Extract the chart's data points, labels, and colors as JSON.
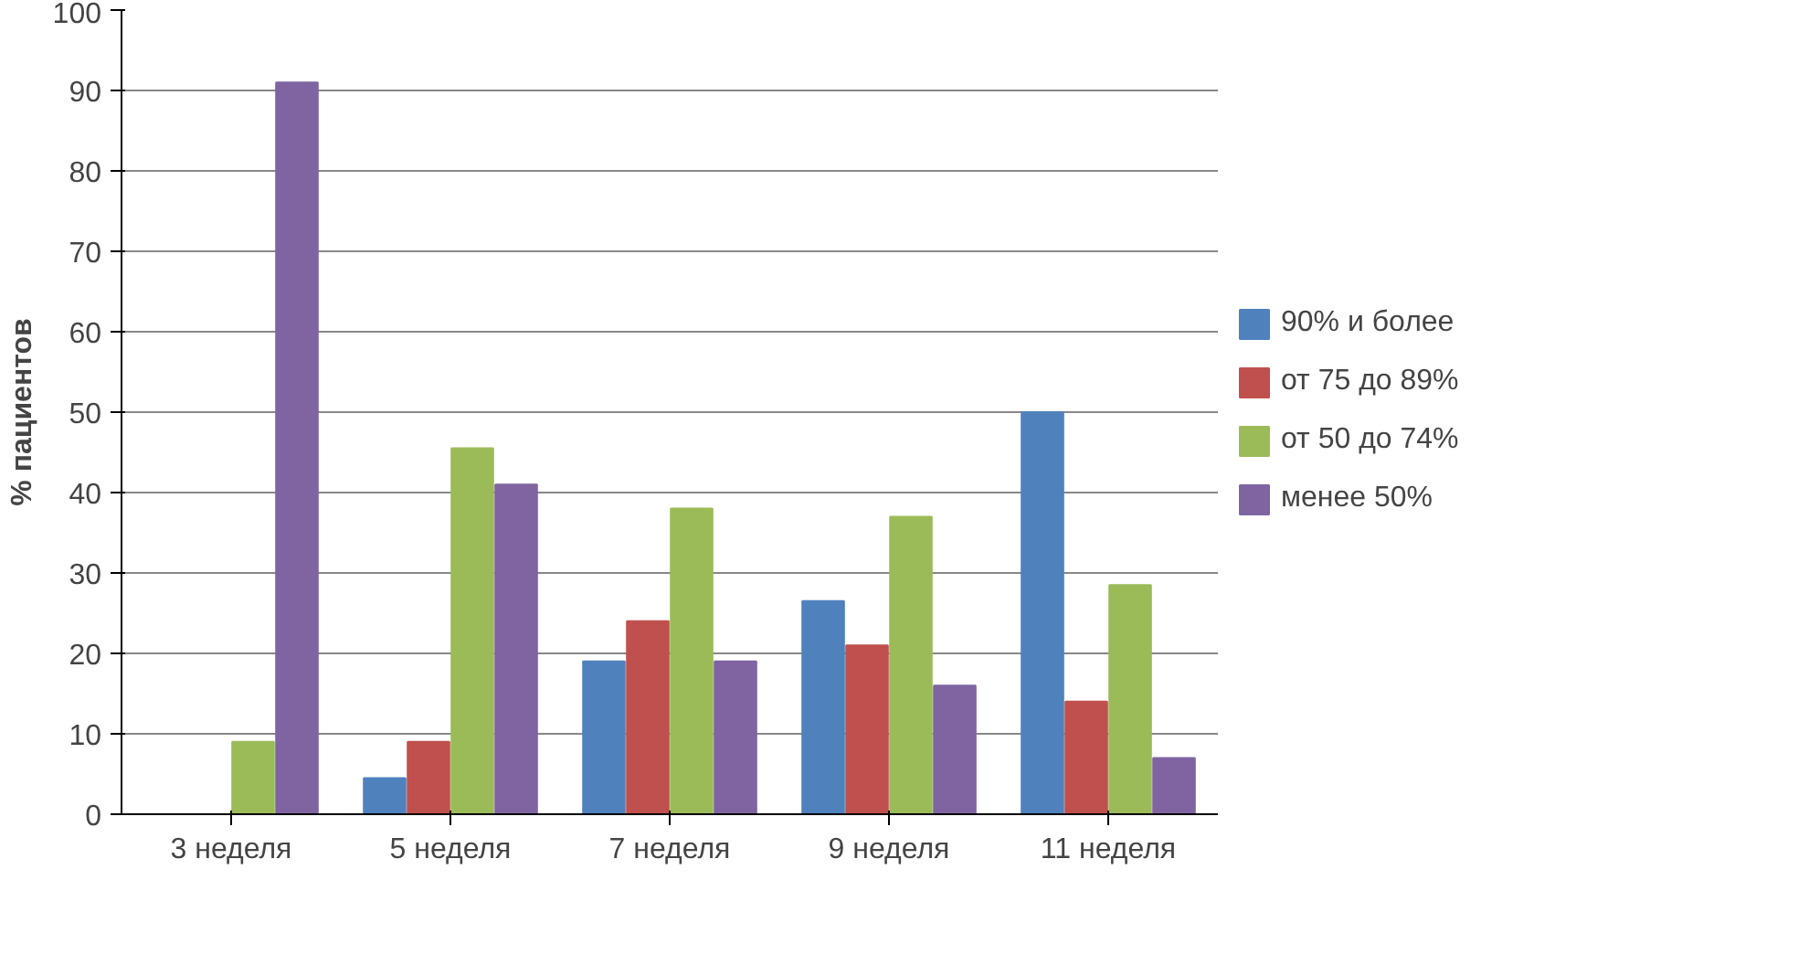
{
  "chart_data": {
    "type": "bar",
    "ylabel": "% пациентов",
    "categories": [
      "3 неделя",
      "5 неделя",
      "7 неделя",
      "9 неделя",
      "11 неделя"
    ],
    "series": [
      {
        "name": "90% и более",
        "color": "#4f81bd",
        "values": [
          0,
          4.5,
          19,
          26.5,
          50
        ]
      },
      {
        "name": "от 75 до 89%",
        "color": "#c0504d",
        "values": [
          0,
          9,
          24,
          21,
          14
        ]
      },
      {
        "name": "от 50 до 74%",
        "color": "#9bbb59",
        "values": [
          9,
          45.5,
          38,
          37,
          28.5
        ]
      },
      {
        "name": "менее 50%",
        "color": "#8064a2",
        "values": [
          91,
          41,
          19,
          16,
          7
        ]
      }
    ],
    "ylim": [
      0,
      100
    ],
    "yticks": [
      0,
      10,
      20,
      30,
      40,
      50,
      60,
      70,
      80,
      90,
      100
    ],
    "grid": "y",
    "legend": "right"
  }
}
